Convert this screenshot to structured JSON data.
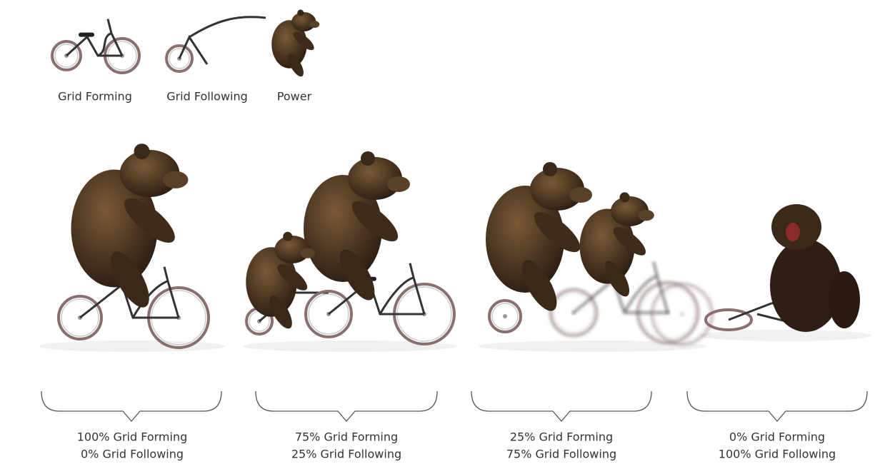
{
  "legend": [
    {
      "label": "Grid Forming"
    },
    {
      "label": "Grid Following"
    },
    {
      "label": "Power"
    }
  ],
  "scenarios": [
    {
      "forming": "100% Grid Forming",
      "following": "0% Grid Following"
    },
    {
      "forming": "75% Grid Forming",
      "following": "25% Grid Following"
    },
    {
      "forming": "25% Grid Forming",
      "following": "75% Grid Following"
    },
    {
      "forming": "0% Grid Forming",
      "following": "100% Grid Following"
    }
  ]
}
